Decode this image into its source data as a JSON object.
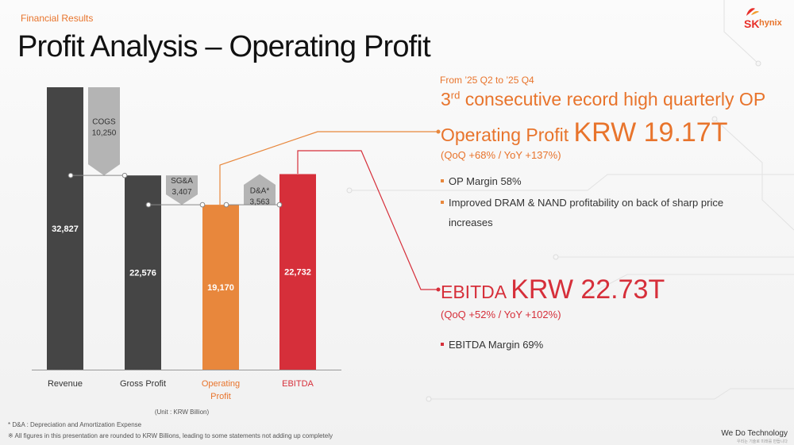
{
  "header": {
    "section_label": "Financial Results",
    "title": "Profit Analysis – Operating Profit"
  },
  "brand": {
    "sk": "SK",
    "hynix": "hynix",
    "tagline": "We Do Technology",
    "tagline_sub": "우리는 기술로 미래를 만듭니다"
  },
  "colors": {
    "accent_orange": "#e8873c",
    "accent_red": "#d62f3a",
    "bar_dark": "#454545",
    "step_gray": "#b4b4b4"
  },
  "chart_data": {
    "type": "bar",
    "subtype": "waterfall",
    "unit_label": "(Unit : KRW Billion)",
    "ylim": [
      0,
      32827
    ],
    "bars": [
      {
        "category": "Revenue",
        "value": 32827,
        "label": "32,827",
        "color": "#454545",
        "label_color": "#333333"
      },
      {
        "category": "Gross Profit",
        "value": 22576,
        "label": "22,576",
        "color": "#454545",
        "label_color": "#333333"
      },
      {
        "category": "Operating Profit",
        "value": 19170,
        "label": "19,170",
        "color": "#e8873c",
        "label_color": "#e8742c"
      },
      {
        "category": "EBITDA",
        "value": 22732,
        "label": "22,732",
        "color": "#d62f3a",
        "label_color": "#d62f3a"
      }
    ],
    "steps": [
      {
        "name": "COGS",
        "value": 10250,
        "label": "10,250",
        "from": 32827,
        "to": 22576,
        "direction": "down"
      },
      {
        "name": "SG&A",
        "value": 3407,
        "label": "3,407",
        "from": 22576,
        "to": 19170,
        "direction": "down"
      },
      {
        "name": "D&A*",
        "value": 3563,
        "label": "3,563",
        "from": 19170,
        "to": 22732,
        "direction": "up"
      }
    ]
  },
  "notes": {
    "da": "* D&A : Depreciation and Amortization Expense",
    "rounding": "※ All figures in this presentation are rounded to KRW Billions, leading to some statements not adding up completely"
  },
  "right_panel": {
    "period": "From ’25 Q2 to ’25 Q4",
    "headline_num": "3",
    "headline_sup": "rd",
    "headline_rest": " consecutive record high quarterly OP",
    "op": {
      "label": "Operating Profit ",
      "value": "KRW 19.17T",
      "change": "(QoQ +68% / YoY +137%)",
      "bullets": [
        "OP Margin 58%",
        "Improved DRAM & NAND profitability on back of sharp price increases"
      ]
    },
    "ebitda": {
      "label": "EBITDA ",
      "value": "KRW 22.73T",
      "change": "(QoQ +52% / YoY +102%)",
      "bullets": [
        "EBITDA Margin 69%"
      ]
    }
  }
}
